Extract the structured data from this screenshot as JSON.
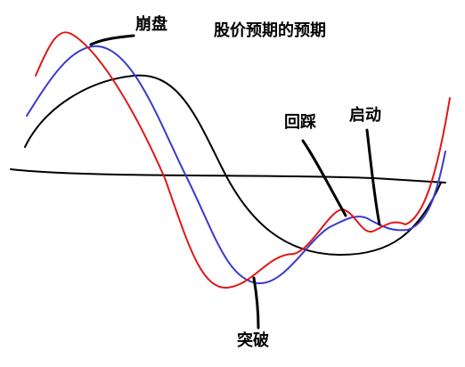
{
  "title": "股价预期的预期",
  "labels": {
    "crash": "崩盘",
    "pullback": "回踩",
    "launch": "启动",
    "breakout": "突破"
  }
}
